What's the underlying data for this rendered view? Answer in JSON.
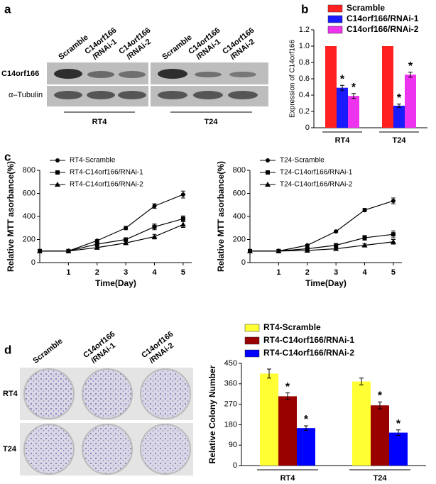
{
  "panel_labels": [
    "a",
    "b",
    "c",
    "d"
  ],
  "blot": {
    "lanes": [
      [
        "Scramble"
      ],
      [
        "C14orf166",
        "/RNAi-1"
      ],
      [
        "C14orf166",
        "/RNAi-2"
      ]
    ],
    "row_labels": [
      "C14orf166",
      "α–Tubulin"
    ],
    "groups": [
      "RT4",
      "T24"
    ]
  },
  "colony": {
    "columns": [
      [
        "Scramble"
      ],
      [
        "C14orf166",
        "/RNAi-1"
      ],
      [
        "C14orf166",
        "/RNAi-2"
      ]
    ],
    "row_labels": [
      "RT4",
      "T24"
    ]
  },
  "chart_data": [
    {
      "type": "bar",
      "ylabel": "Expression of C14orf166",
      "categories": [
        "RT4",
        "T24"
      ],
      "ylim": [
        0,
        1.2
      ],
      "yticks": [
        0,
        0.2,
        0.4,
        0.6,
        0.8,
        {
          "value": 1.0,
          "label": "1.0"
        },
        1.2
      ],
      "significance": "*",
      "series": [
        {
          "name": "Scramble",
          "color": "#ff2020",
          "values": [
            1.0,
            1.0
          ],
          "errors": [
            0,
            0
          ]
        },
        {
          "name": "C14orf166/RNAi-1",
          "color": "#1a1aff",
          "values": [
            0.49,
            0.27
          ],
          "errors": [
            0.03,
            0.02
          ],
          "significant": [
            true,
            true
          ]
        },
        {
          "name": "C14orf166/RNAi-2",
          "color": "#ee33ee",
          "values": [
            0.39,
            0.65
          ],
          "errors": [
            0.03,
            0.03
          ],
          "significant": [
            true,
            true
          ]
        }
      ]
    },
    {
      "type": "line",
      "xlabel": "Time(Day)",
      "ylabel": "Relative MTT asorbance(%)",
      "x": [
        0,
        1,
        2,
        3,
        4,
        5
      ],
      "xlim": [
        0,
        5.3
      ],
      "xticks": [
        1,
        2,
        3,
        4,
        5
      ],
      "ylim": [
        0,
        800
      ],
      "yticks": [
        0,
        200,
        400,
        600,
        800
      ],
      "series": [
        {
          "name": "RT4-Scramble",
          "color": "#000000",
          "marker": "circle",
          "values": [
            100,
            100,
            190,
            300,
            490,
            590
          ],
          "errors": [
            0,
            0,
            8,
            15,
            20,
            30
          ]
        },
        {
          "name": "RT4-C14orf166/RNAi-1",
          "color": "#000000",
          "marker": "square",
          "values": [
            100,
            100,
            160,
            200,
            310,
            380
          ],
          "errors": [
            0,
            0,
            10,
            15,
            25,
            25
          ]
        },
        {
          "name": "RT4-C14orf166/RNAi-2",
          "color": "#000000",
          "marker": "triangle",
          "values": [
            100,
            100,
            130,
            170,
            225,
            330
          ],
          "errors": [
            0,
            0,
            8,
            12,
            20,
            25
          ]
        }
      ]
    },
    {
      "type": "line",
      "xlabel": "Time(Day)",
      "ylabel": "Relative MTT asorbance(%)",
      "x": [
        0,
        1,
        2,
        3,
        4,
        5
      ],
      "xlim": [
        0,
        5.3
      ],
      "xticks": [
        1,
        2,
        3,
        4,
        5
      ],
      "ylim": [
        0,
        800
      ],
      "yticks": [
        0,
        200,
        400,
        600,
        800
      ],
      "series": [
        {
          "name": "T24-Scramble",
          "color": "#000000",
          "marker": "circle",
          "values": [
            100,
            100,
            150,
            270,
            455,
            535
          ],
          "errors": [
            0,
            0,
            5,
            8,
            15,
            25
          ]
        },
        {
          "name": "T24-C14orf166/RNAi-1",
          "color": "#000000",
          "marker": "square",
          "values": [
            100,
            100,
            120,
            150,
            215,
            245
          ],
          "errors": [
            0,
            0,
            8,
            15,
            20,
            30
          ]
        },
        {
          "name": "T24-C14orf166/RNAi-2",
          "color": "#000000",
          "marker": "triangle",
          "values": [
            100,
            100,
            105,
            120,
            150,
            180
          ],
          "errors": [
            0,
            0,
            5,
            10,
            12,
            20
          ]
        }
      ]
    },
    {
      "type": "bar",
      "ylabel": "Relative Colony Number",
      "categories": [
        "RT4",
        "T24"
      ],
      "ylim": [
        0,
        450
      ],
      "yticks": [
        0,
        90,
        180,
        270,
        360,
        450
      ],
      "significance": "*",
      "series": [
        {
          "name": "RT4-Scramble",
          "color": "#ffff33",
          "values": [
            405,
            370
          ],
          "errors": [
            20,
            15
          ]
        },
        {
          "name": "RT4-C14orf166/RNAi-1",
          "color": "#990000",
          "values": [
            305,
            265
          ],
          "errors": [
            15,
            15
          ],
          "significant": [
            true,
            true
          ]
        },
        {
          "name": "RT4-C14orf166/RNAi-2",
          "color": "#0000ff",
          "values": [
            165,
            145
          ],
          "errors": [
            10,
            12
          ],
          "significant": [
            true,
            true
          ]
        }
      ]
    }
  ]
}
